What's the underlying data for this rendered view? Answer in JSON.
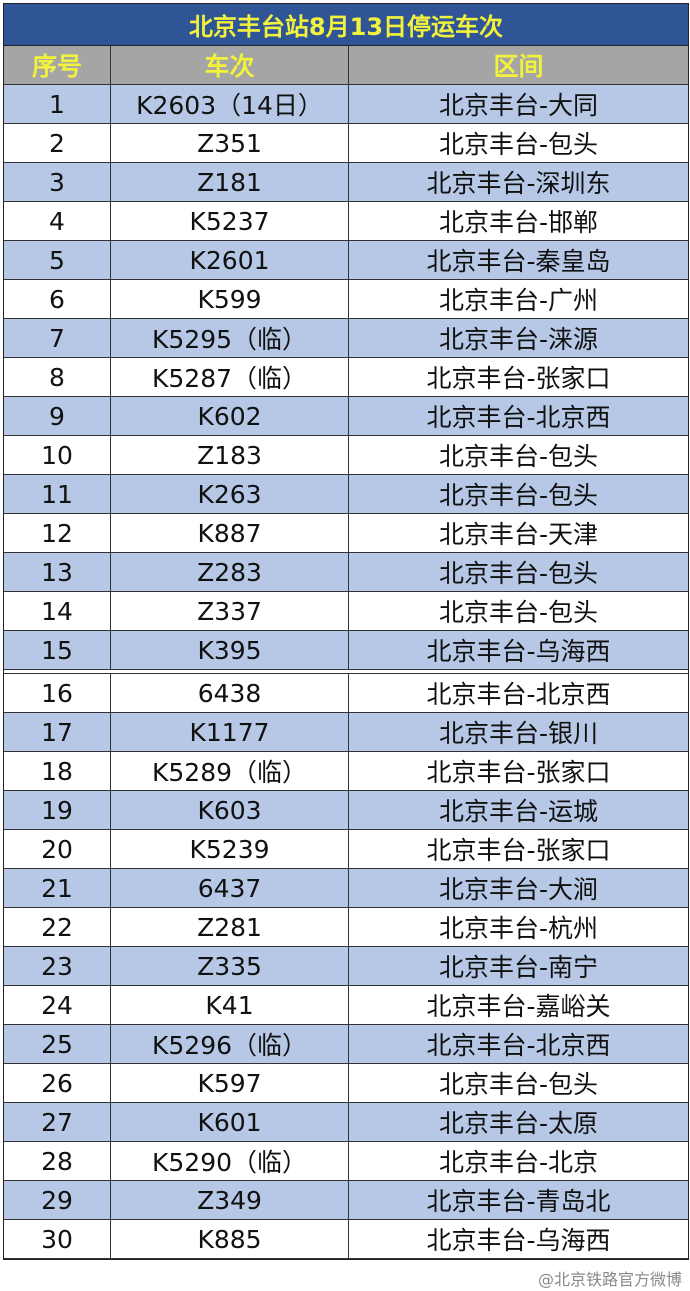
{
  "title": "北京丰台站8月13日停运车次",
  "headers": [
    "序号",
    "车次",
    "区间"
  ],
  "colors": {
    "title_bg": "#2f5597",
    "title_text": "#f2f23c",
    "header_bg": "#a5a5a5",
    "odd_row": "#b6c8e6",
    "even_row": "#ffffff"
  },
  "rows": [
    [
      "1",
      "K2603（14日）",
      "北京丰台-大同"
    ],
    [
      "2",
      "Z351",
      "北京丰台-包头"
    ],
    [
      "3",
      "Z181",
      "北京丰台-深圳东"
    ],
    [
      "4",
      "K5237",
      "北京丰台-邯郸"
    ],
    [
      "5",
      "K2601",
      "北京丰台-秦皇岛"
    ],
    [
      "6",
      "K599",
      "北京丰台-广州"
    ],
    [
      "7",
      "K5295（临）",
      "北京丰台-涞源"
    ],
    [
      "8",
      "K5287（临）",
      "北京丰台-张家口"
    ],
    [
      "9",
      "K602",
      "北京丰台-北京西"
    ],
    [
      "10",
      "Z183",
      "北京丰台-包头"
    ],
    [
      "11",
      "K263",
      "北京丰台-包头"
    ],
    [
      "12",
      "K887",
      "北京丰台-天津"
    ],
    [
      "13",
      "Z283",
      "北京丰台-包头"
    ],
    [
      "14",
      "Z337",
      "北京丰台-包头"
    ],
    [
      "15",
      "K395",
      "北京丰台-乌海西"
    ],
    [
      "16",
      "6438",
      "北京丰台-北京西"
    ],
    [
      "17",
      "K1177",
      "北京丰台-银川"
    ],
    [
      "18",
      "K5289（临）",
      "北京丰台-张家口"
    ],
    [
      "19",
      "K603",
      "北京丰台-运城"
    ],
    [
      "20",
      "K5239",
      "北京丰台-张家口"
    ],
    [
      "21",
      "6437",
      "北京丰台-大涧"
    ],
    [
      "22",
      "Z281",
      "北京丰台-杭州"
    ],
    [
      "23",
      "Z335",
      "北京丰台-南宁"
    ],
    [
      "24",
      "K41",
      "北京丰台-嘉峪关"
    ],
    [
      "25",
      "K5296（临）",
      "北京丰台-北京西"
    ],
    [
      "26",
      "K597",
      "北京丰台-包头"
    ],
    [
      "27",
      "K601",
      "北京丰台-太原"
    ],
    [
      "28",
      "K5290（临）",
      "北京丰台-北京"
    ],
    [
      "29",
      "Z349",
      "北京丰台-青岛北"
    ],
    [
      "30",
      "K885",
      "北京丰台-乌海西"
    ]
  ],
  "watermark": "@北京铁路官方微博"
}
